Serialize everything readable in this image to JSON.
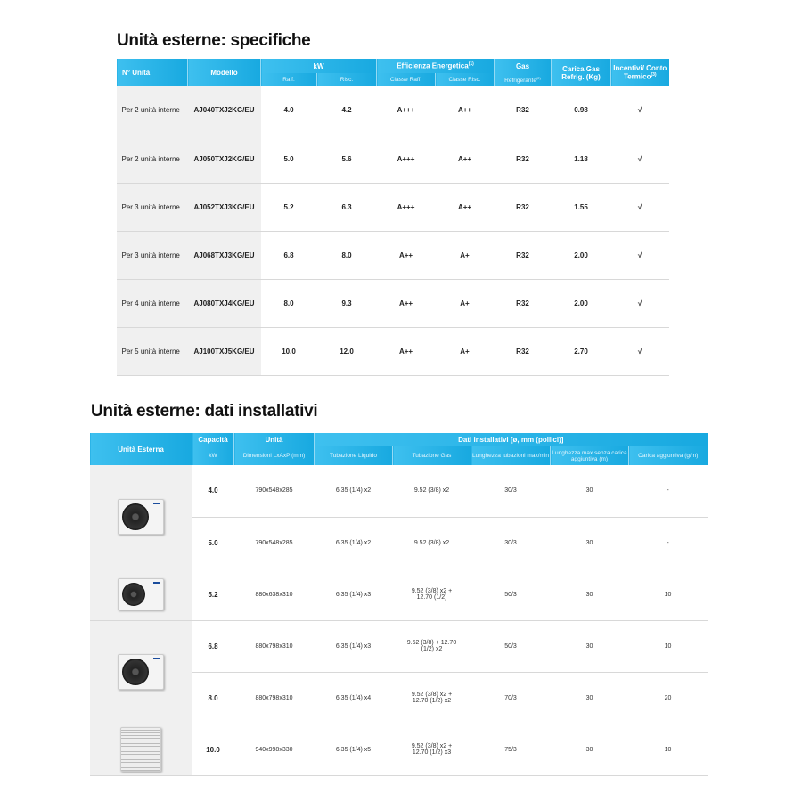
{
  "spec": {
    "title": "Unità esterne: specifiche",
    "headers": {
      "n": "N° Unità",
      "model": "Modello",
      "kw": "kW",
      "eff": "Efficienza Energetica",
      "eff_sup": "(1)",
      "gas": "Gas",
      "carica": "Carica Gas Refrig. (Kg)",
      "inc": "Incentivi/ Conto Termico",
      "inc_sup": "(3)",
      "raff": "Raff.",
      "risc": "Risc.",
      "classe_raff": "Classe Raff.",
      "classe_risc": "Classe Risc.",
      "refr": "Refrigerante",
      "refr_sup": "(2)"
    },
    "rows": [
      {
        "n": "Per 2 unità interne",
        "model": "AJ040TXJ2KG/EU",
        "raff": "4.0",
        "risc": "4.2",
        "cr": "A+++",
        "cs": "A++",
        "gas": "R32",
        "kg": "0.98",
        "inc": "√"
      },
      {
        "n": "Per 2 unità interne",
        "model": "AJ050TXJ2KG/EU",
        "raff": "5.0",
        "risc": "5.6",
        "cr": "A+++",
        "cs": "A++",
        "gas": "R32",
        "kg": "1.18",
        "inc": "√"
      },
      {
        "n": "Per 3 unità interne",
        "model": "AJ052TXJ3KG/EU",
        "raff": "5.2",
        "risc": "6.3",
        "cr": "A+++",
        "cs": "A++",
        "gas": "R32",
        "kg": "1.55",
        "inc": "√"
      },
      {
        "n": "Per 3 unità interne",
        "model": "AJ068TXJ3KG/EU",
        "raff": "6.8",
        "risc": "8.0",
        "cr": "A++",
        "cs": "A+",
        "gas": "R32",
        "kg": "2.00",
        "inc": "√"
      },
      {
        "n": "Per 4 unità interne",
        "model": "AJ080TXJ4KG/EU",
        "raff": "8.0",
        "risc": "9.3",
        "cr": "A++",
        "cs": "A+",
        "gas": "R32",
        "kg": "2.00",
        "inc": "√"
      },
      {
        "n": "Per 5 unità interne",
        "model": "AJ100TXJ5KG/EU",
        "raff": "10.0",
        "risc": "12.0",
        "cr": "A++",
        "cs": "A+",
        "gas": "R32",
        "kg": "2.70",
        "inc": "√"
      }
    ]
  },
  "inst": {
    "title": "Unità esterne: dati installativi",
    "headers": {
      "ue": "Unità Esterna",
      "cap": "Capacità",
      "unita": "Unità",
      "dati": "Dati installativi [ø, mm (pollici)]",
      "kw": "kW",
      "dim": "Dimensioni LxAxP (mm)",
      "liq": "Tubazione Liquido",
      "gasp": "Tubazione Gas",
      "lung": "Lunghezza tubazioni max/min",
      "lmax": "Lunghezza max senza carica aggiuntiva (m)",
      "car": "Carica aggiuntiva (g/m)"
    },
    "rows": [
      {
        "kw": "4.0",
        "dim": "790x548x285",
        "liq": "6.35 (1/4) x2",
        "gas": "9.52 (3/8) x2",
        "lung": "30/3",
        "lmax": "30",
        "car": "-"
      },
      {
        "kw": "5.0",
        "dim": "790x548x285",
        "liq": "6.35 (1/4) x2",
        "gas": "9.52 (3/8) x2",
        "lung": "30/3",
        "lmax": "30",
        "car": "-"
      },
      {
        "kw": "5.2",
        "dim": "880x638x310",
        "liq": "6.35 (1/4) x3",
        "gas": "9.52 (3/8) x2 + 12.70 (1/2)",
        "lung": "50/3",
        "lmax": "30",
        "car": "10"
      },
      {
        "kw": "6.8",
        "dim": "880x798x310",
        "liq": "6.35 (1/4) x3",
        "gas": "9.52 (3/8) + 12.70 (1/2) x2",
        "lung": "50/3",
        "lmax": "30",
        "car": "10"
      },
      {
        "kw": "8.0",
        "dim": "880x798x310",
        "liq": "6.35 (1/4) x4",
        "gas": "9.52 (3/8) x2 + 12.70 (1/2) x2",
        "lung": "70/3",
        "lmax": "30",
        "car": "20"
      },
      {
        "kw": "10.0",
        "dim": "940x998x330",
        "liq": "6.35 (1/4) x5",
        "gas": "9.52 (3/8) x2 + 12.70 (1/2) x3",
        "lung": "75/3",
        "lmax": "30",
        "car": "10"
      }
    ]
  }
}
